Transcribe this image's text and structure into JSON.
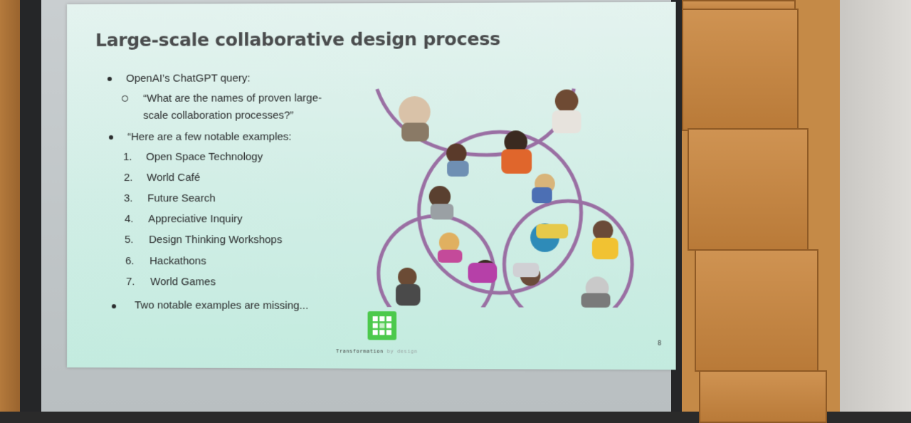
{
  "slide": {
    "title": "Large-scale collaborative design process",
    "bullet1": "OpenAI’s ChatGPT query:",
    "sub1_line1": "“What are the names of proven large-",
    "sub1_line2": "scale collaboration processes?”",
    "bullet2": "“Here are a few notable examples:",
    "examples": [
      {
        "n": "1.",
        "label": "Open Space Technology"
      },
      {
        "n": "2.",
        "label": "World Café"
      },
      {
        "n": "3.",
        "label": "Future Search"
      },
      {
        "n": "4.",
        "label": "Appreciative Inquiry"
      },
      {
        "n": "5.",
        "label": "Design Thinking Workshops"
      },
      {
        "n": "6.",
        "label": "Hackathons"
      },
      {
        "n": "7.",
        "label": "World Games"
      }
    ],
    "bullet3": "Two notable examples are missing...",
    "brand_main": "Transformation",
    "brand_by": "by design",
    "page_number": "8"
  },
  "colors": {
    "circle_stroke": "#9a6fa3",
    "logo_green": "#4cc94c",
    "slide_bg": "#d2eee6"
  },
  "icons": [
    "people-circles-collage",
    "transformation-logo-icon"
  ]
}
